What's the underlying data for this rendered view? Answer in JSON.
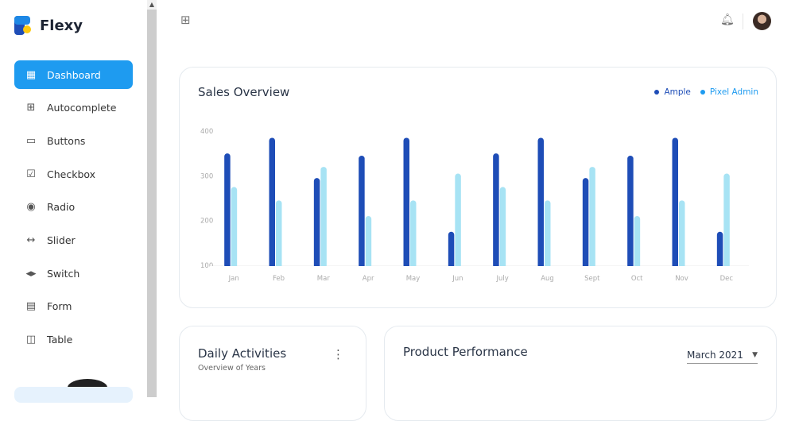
{
  "brand": {
    "name": "Flexy"
  },
  "sidebar": {
    "items": [
      {
        "label": "Dashboard",
        "icon": "dashboard-icon",
        "glyph": "▦"
      },
      {
        "label": "Autocomplete",
        "icon": "autocomplete-icon",
        "glyph": "⊞"
      },
      {
        "label": "Buttons",
        "icon": "buttons-icon",
        "glyph": "▭"
      },
      {
        "label": "Checkbox",
        "icon": "checkbox-icon",
        "glyph": "☑"
      },
      {
        "label": "Radio",
        "icon": "radio-icon",
        "glyph": "◉"
      },
      {
        "label": "Slider",
        "icon": "slider-icon",
        "glyph": "↔"
      },
      {
        "label": "Switch",
        "icon": "switch-icon",
        "glyph": "◂▸"
      },
      {
        "label": "Form",
        "icon": "form-icon",
        "glyph": "▤"
      },
      {
        "label": "Table",
        "icon": "table-icon",
        "glyph": "◫"
      }
    ]
  },
  "sales": {
    "title": "Sales Overview",
    "legend": [
      "Ample",
      "Pixel Admin"
    ]
  },
  "daily": {
    "title": "Daily Activities",
    "subtitle": "Overview of Years"
  },
  "product": {
    "title": "Product Performance",
    "select": "March 2021"
  },
  "colors": {
    "ample": "#1e4db7",
    "pixel": "#a7e3f4",
    "accent": "#1e9bf0"
  },
  "chart_data": {
    "type": "bar",
    "title": "Sales Overview",
    "categories": [
      "Jan",
      "Feb",
      "Mar",
      "Apr",
      "May",
      "Jun",
      "July",
      "Aug",
      "Sept",
      "Oct",
      "Nov",
      "Dec"
    ],
    "series": [
      {
        "name": "Ample",
        "values": [
          350,
          385,
          295,
          345,
          385,
          175,
          350,
          385,
          295,
          345,
          385,
          175
        ]
      },
      {
        "name": "Pixel Admin",
        "values": [
          275,
          245,
          320,
          210,
          245,
          305,
          275,
          245,
          320,
          210,
          245,
          305
        ]
      }
    ],
    "yticks": [
      100,
      200,
      300,
      400
    ],
    "ylim": [
      100,
      400
    ],
    "legend": "top-right",
    "grid": false
  }
}
